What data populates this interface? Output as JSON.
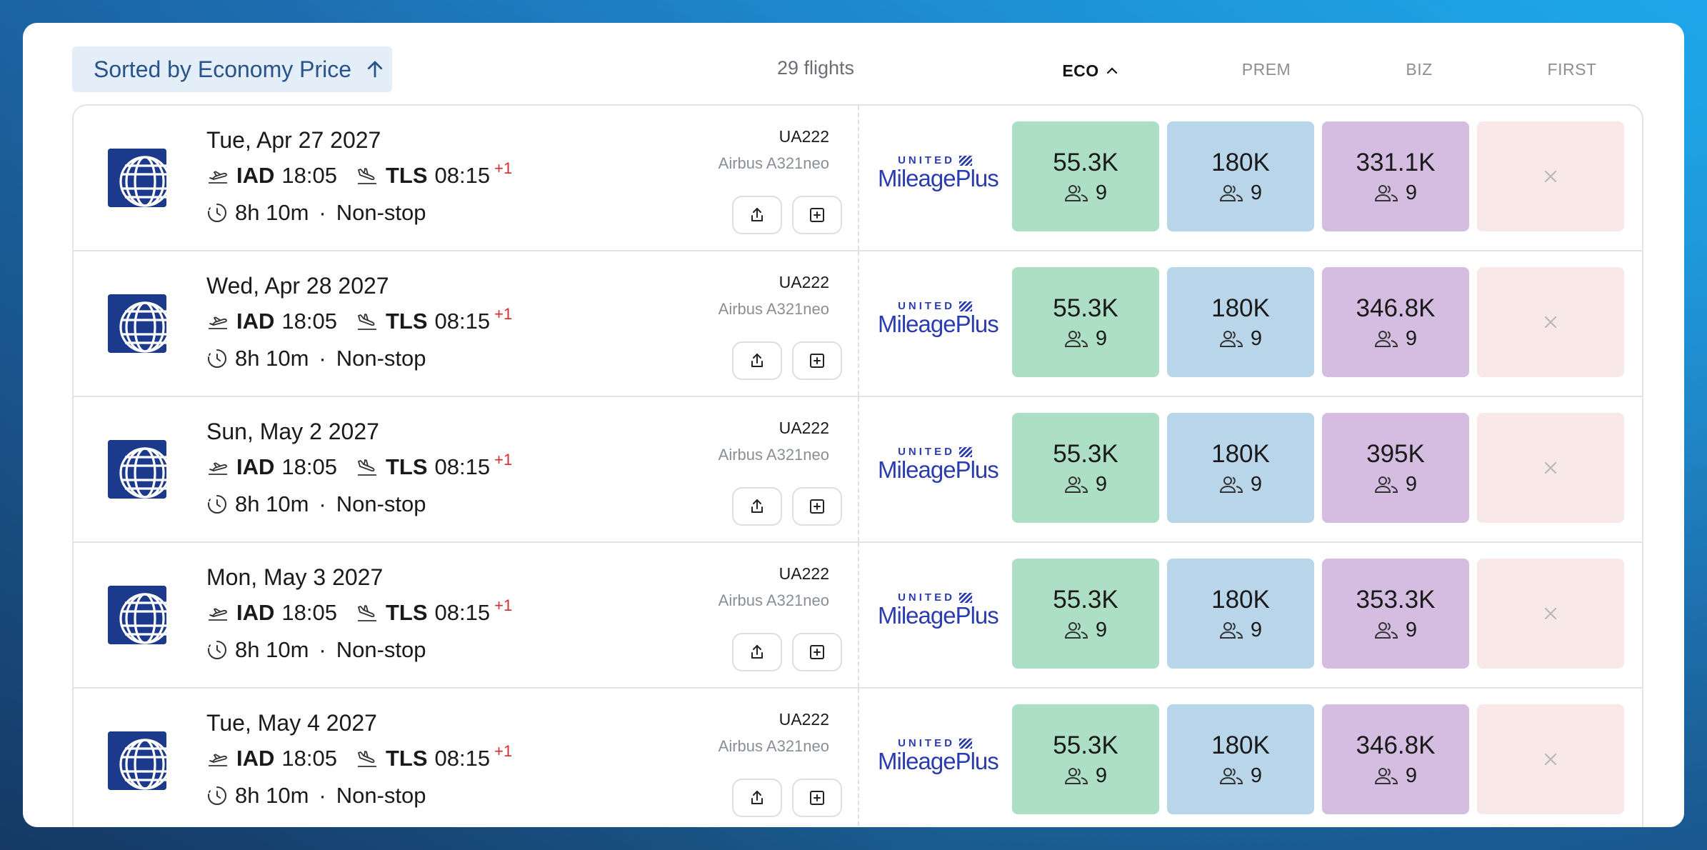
{
  "header": {
    "sort_label": "Sorted by Economy Price",
    "flight_count": "29 flights",
    "columns": [
      {
        "label": "ECO",
        "active": true
      },
      {
        "label": "PREM",
        "active": false
      },
      {
        "label": "BIZ",
        "active": false
      },
      {
        "label": "FIRST",
        "active": false
      }
    ]
  },
  "program": {
    "top": "UNITED",
    "bottom": "MileagePlus"
  },
  "flights": [
    {
      "date": "Tue, Apr 27 2027",
      "origin": "IAD",
      "dep": "18:05",
      "dest": "TLS",
      "arr": "08:15",
      "day_offset": "+1",
      "duration": "8h 10m",
      "stops": "Non-stop",
      "flight_number": "UA222",
      "aircraft": "Airbus A321neo",
      "eco": {
        "price": "55.3K",
        "seats": "9"
      },
      "prem": {
        "price": "180K",
        "seats": "9"
      },
      "biz": {
        "price": "331.1K",
        "seats": "9"
      }
    },
    {
      "date": "Wed, Apr 28 2027",
      "origin": "IAD",
      "dep": "18:05",
      "dest": "TLS",
      "arr": "08:15",
      "day_offset": "+1",
      "duration": "8h 10m",
      "stops": "Non-stop",
      "flight_number": "UA222",
      "aircraft": "Airbus A321neo",
      "eco": {
        "price": "55.3K",
        "seats": "9"
      },
      "prem": {
        "price": "180K",
        "seats": "9"
      },
      "biz": {
        "price": "346.8K",
        "seats": "9"
      }
    },
    {
      "date": "Sun, May 2 2027",
      "origin": "IAD",
      "dep": "18:05",
      "dest": "TLS",
      "arr": "08:15",
      "day_offset": "+1",
      "duration": "8h 10m",
      "stops": "Non-stop",
      "flight_number": "UA222",
      "aircraft": "Airbus A321neo",
      "eco": {
        "price": "55.3K",
        "seats": "9"
      },
      "prem": {
        "price": "180K",
        "seats": "9"
      },
      "biz": {
        "price": "395K",
        "seats": "9"
      }
    },
    {
      "date": "Mon, May 3 2027",
      "origin": "IAD",
      "dep": "18:05",
      "dest": "TLS",
      "arr": "08:15",
      "day_offset": "+1",
      "duration": "8h 10m",
      "stops": "Non-stop",
      "flight_number": "UA222",
      "aircraft": "Airbus A321neo",
      "eco": {
        "price": "55.3K",
        "seats": "9"
      },
      "prem": {
        "price": "180K",
        "seats": "9"
      },
      "biz": {
        "price": "353.3K",
        "seats": "9"
      }
    },
    {
      "date": "Tue, May 4 2027",
      "origin": "IAD",
      "dep": "18:05",
      "dest": "TLS",
      "arr": "08:15",
      "day_offset": "+1",
      "duration": "8h 10m",
      "stops": "Non-stop",
      "flight_number": "UA222",
      "aircraft": "Airbus A321neo",
      "eco": {
        "price": "55.3K",
        "seats": "9"
      },
      "prem": {
        "price": "180K",
        "seats": "9"
      },
      "biz": {
        "price": "346.8K",
        "seats": "9"
      }
    }
  ],
  "icons": {
    "sort": "arrow-up-icon",
    "departure": "plane-takeoff-icon",
    "arrival": "plane-landing-icon",
    "duration": "clock-icon",
    "share": "share-icon",
    "add": "plus-square-icon",
    "seats": "users-icon",
    "unavailable": "close-icon"
  },
  "colors": {
    "eco": "#acdfc3",
    "prem": "#b9d5ea",
    "biz": "#d4bde0",
    "first": "#f8e8e8",
    "day_offset": "#d72c2c",
    "sort_button": "#e3eef8"
  }
}
